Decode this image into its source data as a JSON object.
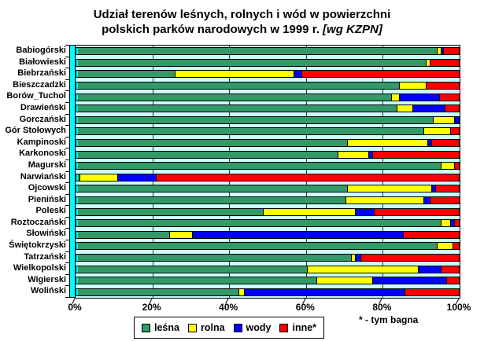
{
  "title": {
    "line1": "Udział terenów leśnych, rolnych i wód w powierzchni",
    "line2_normal": "polskich parków narodowych w 1999 r. ",
    "line2_italic": "[wg KZPN]"
  },
  "footnote": "* - tym bagna",
  "colors": {
    "lesna": "#339966",
    "rolna": "#FFFF00",
    "wody": "#0000FF",
    "inne": "#FF0000",
    "plot_background": "#CCFFFF",
    "wall_edge": "#00FFFF",
    "gridline": "#000000"
  },
  "chart_data": {
    "type": "bar",
    "stacked": true,
    "orientation": "horizontal",
    "title": "Udział terenów leśnych, rolnych i wód w powierzchni polskich parków narodowych w 1999 r. [wg KZPN]",
    "xlabel": "",
    "ylabel": "",
    "xlim": [
      0,
      100
    ],
    "x_ticks": [
      "0%",
      "20%",
      "40%",
      "60%",
      "80%",
      "100%"
    ],
    "grid": true,
    "legend_position": "bottom",
    "units": "percent of park area",
    "categories": [
      "Babiogórski",
      "Białowieski",
      "Biebrzański",
      "Bieszczadzki",
      "Borów_Tuchol",
      "Drawieński",
      "Gorczański",
      "Gór Stołowych",
      "Kampinoski",
      "Karkonoski",
      "Magurski",
      "Narwiański",
      "Ojcowski",
      "Pieniński",
      "Poleski",
      "Roztoczański",
      "Słowiński",
      "Świętokrzyski",
      "Tatrzański",
      "Wielkopolski",
      "Wigierski",
      "Woliński"
    ],
    "series": [
      {
        "key": "lesna",
        "name": "leśna",
        "color": "#339966",
        "values": [
          94.5,
          91.5,
          26,
          84.5,
          82.5,
          84,
          93.5,
          91,
          71,
          68.5,
          95.5,
          1,
          71,
          70.5,
          49,
          95.5,
          24.5,
          94.5,
          72,
          60.5,
          63,
          42.5
        ]
      },
      {
        "key": "rolna",
        "name": "rolna",
        "color": "#FFFF00",
        "values": [
          1,
          1,
          31,
          7,
          2,
          4,
          5.5,
          7,
          21,
          8,
          3.5,
          10,
          22,
          20.5,
          24,
          2.5,
          6,
          4,
          1,
          29,
          14.5,
          1.5
        ]
      },
      {
        "key": "wody",
        "name": "wody",
        "color": "#0000FF",
        "values": [
          0.5,
          0,
          2,
          0,
          10.5,
          8.5,
          1,
          0,
          1,
          1,
          0,
          10,
          1,
          1.5,
          5,
          1,
          55,
          0,
          1.5,
          6,
          19.5,
          42
        ]
      },
      {
        "key": "inne",
        "name": "inne*",
        "color": "#FF0000",
        "values": [
          4,
          7.5,
          41,
          8.5,
          5,
          3.5,
          0,
          2,
          7,
          22.5,
          1,
          79,
          6,
          7.5,
          22,
          1,
          14.5,
          1.5,
          25.5,
          4.5,
          3,
          14
        ]
      }
    ]
  }
}
